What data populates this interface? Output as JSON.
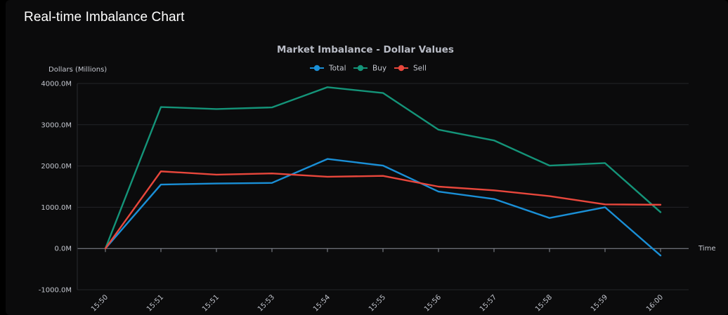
{
  "header": {
    "title": "Real-time Imbalance Chart"
  },
  "chart_data": {
    "type": "line",
    "title": "Market Imbalance - Dollar Values",
    "xlabel": "Time",
    "ylabel": "Dollars (Millions)",
    "ylim": [
      -1000,
      4000
    ],
    "yticks": [
      -1000,
      0,
      1000,
      2000,
      3000,
      4000
    ],
    "ytick_labels": [
      "-1000.0M",
      "0.0M",
      "1000.0M",
      "2000.0M",
      "3000.0M",
      "4000.0M"
    ],
    "categories": [
      "15:50",
      "15:51",
      "15:51",
      "15:53",
      "15:54",
      "15:55",
      "15:56",
      "15:57",
      "15:58",
      "15:59",
      "16:00"
    ],
    "grid": true,
    "legend_position": "top-center",
    "series": [
      {
        "name": "Total",
        "color": "#1a8fd6",
        "values": [
          0,
          1550,
          1575,
          1590,
          2170,
          2010,
          1380,
          1200,
          740,
          1000,
          -170
        ]
      },
      {
        "name": "Buy",
        "color": "#149479",
        "values": [
          0,
          3430,
          3380,
          3420,
          3910,
          3770,
          2880,
          2620,
          2010,
          2070,
          880
        ]
      },
      {
        "name": "Sell",
        "color": "#e8473c",
        "values": [
          0,
          1870,
          1790,
          1820,
          1740,
          1760,
          1500,
          1410,
          1270,
          1070,
          1060
        ]
      }
    ]
  }
}
